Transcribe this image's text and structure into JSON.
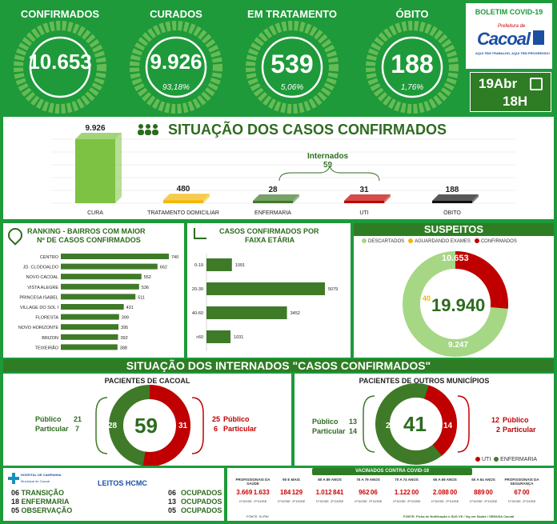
{
  "header": {
    "cards": [
      {
        "title": "CONFIRMADOS",
        "value": "10.653",
        "pct": ""
      },
      {
        "title": "CURADOS",
        "value": "9.926",
        "pct": "93,18%"
      },
      {
        "title": "EM TRATAMENTO",
        "value": "539",
        "pct": "5,06%"
      },
      {
        "title": "ÓBITO",
        "value": "188",
        "pct": "1,76%"
      }
    ],
    "bulletin": "BOLETIM COVID-19",
    "logo_top": "Prefeitura de",
    "logo_name": "Cacoal",
    "logo_tagline": "AQUI TEM TRABALHO, AQUI TEM PROGRESSO!",
    "date": "19Abr",
    "hour": "18H"
  },
  "situacao": {
    "title": "SITUAÇÃO DOS CASOS CONFIRMADOS",
    "internados_label": "Internados",
    "internados_value": "59",
    "bars": [
      {
        "label": "CURA",
        "value": 9926,
        "display": "9.926",
        "color": "#7dc242"
      },
      {
        "label": "TRATAMENTO DOMICILIAR",
        "value": 480,
        "display": "480",
        "color": "#f2b705"
      },
      {
        "label": "ENFERMARIA",
        "value": 28,
        "display": "28",
        "color": "#3f7a28"
      },
      {
        "label": "UTI",
        "value": 31,
        "display": "31",
        "color": "#c00000"
      },
      {
        "label": "ÓBITO",
        "value": 188,
        "display": "188",
        "color": "#111111"
      }
    ]
  },
  "ranking": {
    "title_line1": "RANKING - BAIRROS COM MAIOR",
    "title_line2": "Nº DE CASOS CONFIRMADOS",
    "rows": [
      {
        "name": "CENTRO",
        "value": 740
      },
      {
        "name": "JD. CLODOALDO",
        "value": 662
      },
      {
        "name": "NOVO CACOAL",
        "value": 552
      },
      {
        "name": "VISTA ALEGRE",
        "value": 536
      },
      {
        "name": "PRINCESA ISABEL",
        "value": 511
      },
      {
        "name": "VILLAGE DO SOL I",
        "value": 431
      },
      {
        "name": "FLORESTA",
        "value": 399
      },
      {
        "name": "NOVO HORIZONTE",
        "value": 395
      },
      {
        "name": "BRIZON",
        "value": 392
      },
      {
        "name": "TEIXEIRÃO",
        "value": 388
      }
    ]
  },
  "faixa": {
    "title_line1": "CASOS CONFIRMADOS POR",
    "title_line2": "FAIXA ETÁRIA",
    "rows": [
      {
        "name": "0-19",
        "value": 1091
      },
      {
        "name": "20-39",
        "value": 5079
      },
      {
        "name": "40-60",
        "value": 3452
      },
      {
        "name": ">60",
        "value": 1031
      }
    ]
  },
  "suspeitos": {
    "title": "SUSPEITOS",
    "legend": [
      {
        "label": "DESCARTADOS",
        "color": "#a6d785"
      },
      {
        "label": "AGUARDANDO EXAMES",
        "color": "#f2b705"
      },
      {
        "label": "CONFIRMADOS",
        "color": "#c00000"
      }
    ],
    "total": "19.940",
    "confirmados": "10.653",
    "aguardando": "40",
    "descartados": "9.247"
  },
  "internados": {
    "title": "SITUAÇÃO DOS INTERNADOS \"CASOS CONFIRMADOS\"",
    "cacoal": {
      "title": "PACIENTES DE CACOAL",
      "total": "59",
      "enfermaria": "28",
      "uti": "31",
      "left_publico_label": "Público",
      "left_publico": "21",
      "left_particular_label": "Particular",
      "left_particular": "7",
      "right_publico_label": "Público",
      "right_publico": "25",
      "right_particular_label": "Particular",
      "right_particular": "6"
    },
    "outros": {
      "title": "PACIENTES DE OUTROS MUNICÍPIOS",
      "total": "41",
      "enfermaria": "27",
      "uti": "14",
      "left_publico_label": "Público",
      "left_publico": "13",
      "left_particular_label": "Particular",
      "left_particular": "14",
      "right_publico_label": "Público",
      "right_publico": "12",
      "right_particular_label": "Particular",
      "right_particular": "2",
      "legend_uti": "UTI",
      "legend_enf": "ENFERMARIA"
    }
  },
  "leitos": {
    "hospital": "HOSPITAL DE CAMPANHA",
    "hospital_sub": "Municipal de Cacoal",
    "title": "LEITOS HCMC",
    "rows": [
      {
        "num": "06",
        "label": "TRANSIÇÃO",
        "occ_num": "06",
        "occ_label": "OCUPADOS"
      },
      {
        "num": "18",
        "label": "ENFERMARIA",
        "occ_num": "13",
        "occ_label": "OCUPADOS"
      },
      {
        "num": "05",
        "label": "OBSERVAÇÃO",
        "occ_num": "05",
        "occ_label": "OCUPADOS"
      }
    ]
  },
  "vacinados": {
    "title": "VACINADOS CONTRA COVID-19",
    "groups": [
      {
        "name": "PROFISSIONAIS DA SAÚDE",
        "d1": "3.669",
        "d2": "1.633"
      },
      {
        "name": "90 E MAIS",
        "d1": "184",
        "d2": "129"
      },
      {
        "name": "80 A 89 ANOS",
        "d1": "1.012",
        "d2": "841"
      },
      {
        "name": "75 A 79 ANOS",
        "d1": "962",
        "d2": "06"
      },
      {
        "name": "70 A 74 ANOS",
        "d1": "1.122",
        "d2": "00"
      },
      {
        "name": "65 A 69 ANOS",
        "d1": "2.088",
        "d2": "00"
      },
      {
        "name": "60 A 64 ANOS",
        "d1": "889",
        "d2": "00"
      },
      {
        "name": "PROFISSIONAIS DA SEGURANÇA",
        "d1": "67",
        "d2": "00"
      }
    ],
    "dose1": "1ª DOSE",
    "dose2": "2ª DOSE",
    "fonte_left": "FONTE: SI-PNI",
    "fonte_right": "FONTE: Ficha de Notificação e-SUS VE / Vig em Saúde / SEMUSA Cacoal"
  }
}
